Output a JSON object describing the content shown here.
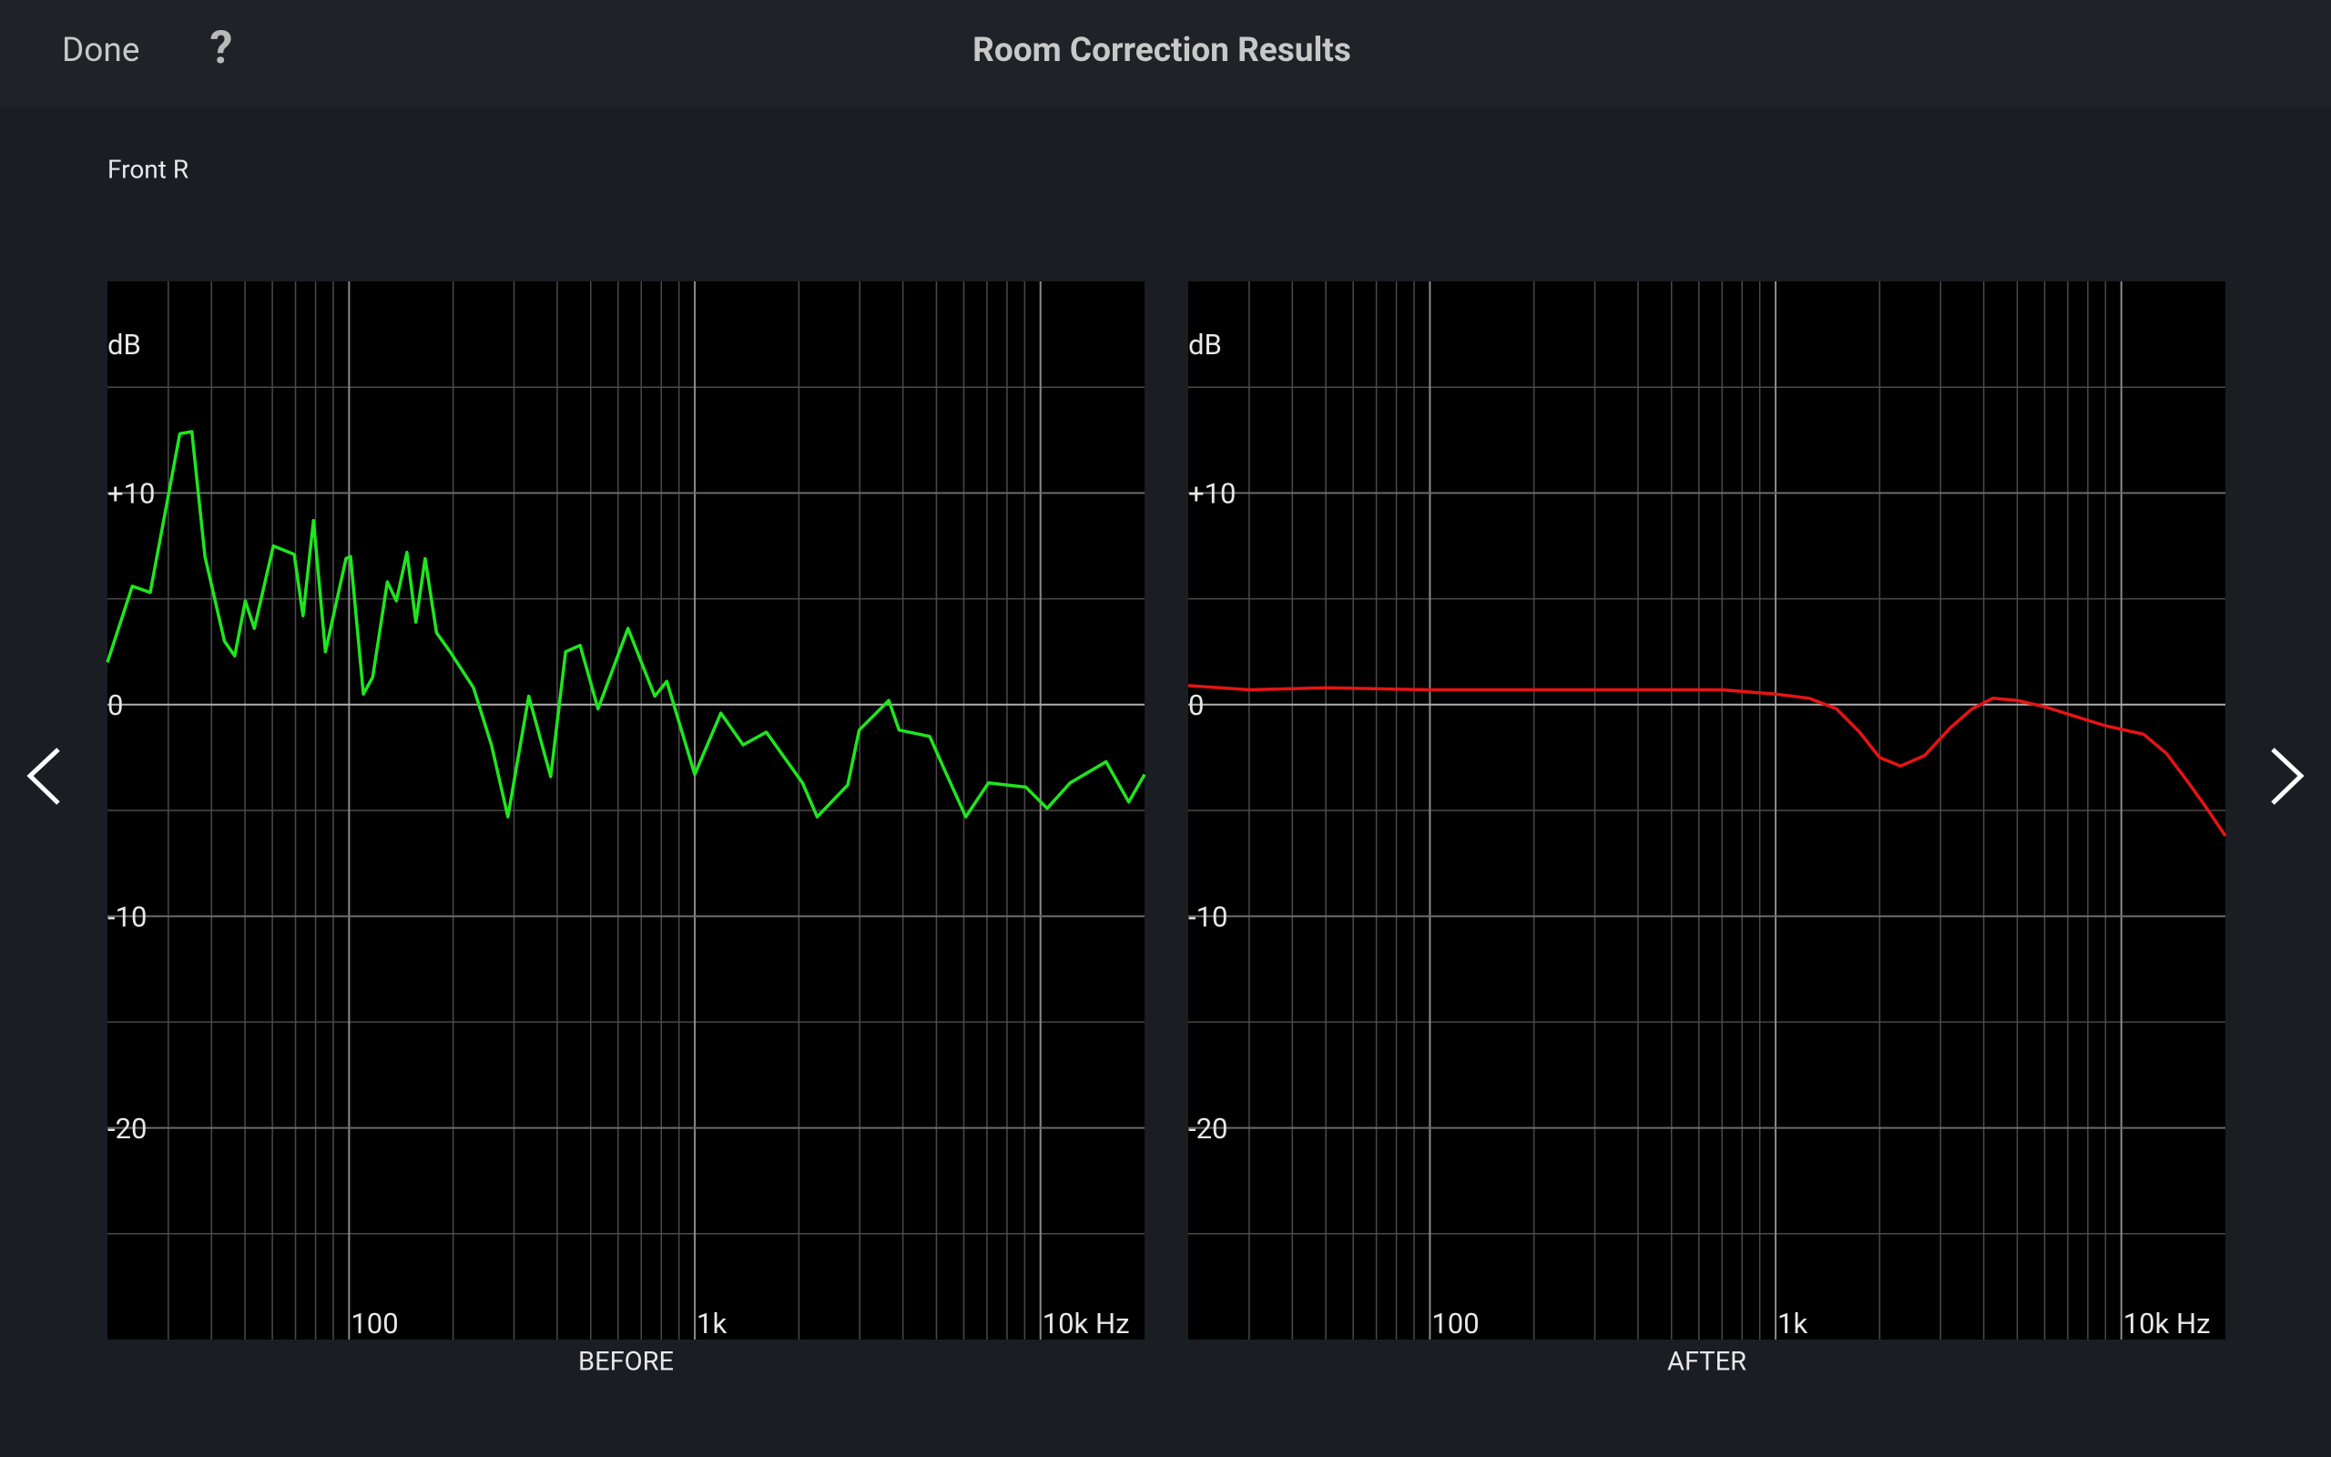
{
  "header": {
    "done": "Done",
    "help": "?",
    "title": "Room Correction Results"
  },
  "section_label": "Front R",
  "chart_data": [
    {
      "type": "line",
      "title": "BEFORE",
      "y_unit": "dB",
      "xscale": "log",
      "grid": true,
      "xlim": [
        20,
        20000
      ],
      "ylim": [
        -30,
        20
      ],
      "xticks": [
        {
          "value": 100,
          "label": "100"
        },
        {
          "value": 1000,
          "label": "1k"
        },
        {
          "value": 10000,
          "label": "10k Hz"
        }
      ],
      "xminorticks": [
        30,
        40,
        50,
        60,
        70,
        80,
        90,
        200,
        300,
        400,
        500,
        600,
        700,
        800,
        900,
        2000,
        3000,
        4000,
        5000,
        6000,
        7000,
        8000,
        9000
      ],
      "yticks": [
        {
          "value": 10,
          "label": "+10"
        },
        0,
        -10,
        -20
      ],
      "yminorticks": [
        15,
        5,
        -5,
        -15,
        -25
      ],
      "x": [
        20,
        23.6,
        26.6,
        32.4,
        35.1,
        38.3,
        43.6,
        46.7,
        50.1,
        53.2,
        60.4,
        69.4,
        73.6,
        78.9,
        85.4,
        98,
        101,
        110,
        117,
        129,
        137,
        147,
        156,
        166,
        179,
        196,
        229,
        258,
        288,
        331,
        383,
        423,
        466,
        525,
        641,
        766,
        830,
        1000,
        1190,
        1380,
        1610,
        2050,
        2260,
        2770,
        2990,
        3640,
        3900,
        4780,
        5320,
        6080,
        7070,
        9070,
        10460,
        12180,
        15470,
        18000,
        20000
      ],
      "series": [
        {
          "color": "#1ee61e",
          "values": [
            2.0,
            5.6,
            5.3,
            12.8,
            12.9,
            7.0,
            3.0,
            2.3,
            4.9,
            3.6,
            7.5,
            7.1,
            4.2,
            8.7,
            2.5,
            6.9,
            7.0,
            0.5,
            1.3,
            5.8,
            4.9,
            7.2,
            3.9,
            6.9,
            3.4,
            2.5,
            0.8,
            -1.9,
            -5.3,
            0.4,
            -3.4,
            2.5,
            2.8,
            -0.2,
            3.6,
            0.4,
            1.1,
            -3.3,
            -0.4,
            -1.9,
            -1.3,
            -3.7,
            -5.3,
            -3.8,
            -1.2,
            0.2,
            -1.2,
            -1.5,
            -3.2,
            -5.3,
            -3.7,
            -3.9,
            -4.9,
            -3.7,
            -2.7,
            -4.6,
            -3.3
          ]
        }
      ]
    },
    {
      "type": "line",
      "title": "AFTER",
      "y_unit": "dB",
      "xscale": "log",
      "grid": true,
      "xlim": [
        20,
        20000
      ],
      "ylim": [
        -30,
        20
      ],
      "xticks": [
        {
          "value": 100,
          "label": "100"
        },
        {
          "value": 1000,
          "label": "1k"
        },
        {
          "value": 10000,
          "label": "10k Hz"
        }
      ],
      "xminorticks": [
        30,
        40,
        50,
        60,
        70,
        80,
        90,
        200,
        300,
        400,
        500,
        600,
        700,
        800,
        900,
        2000,
        3000,
        4000,
        5000,
        6000,
        7000,
        8000,
        9000
      ],
      "yticks": [
        {
          "value": 10,
          "label": "+10"
        },
        0,
        -10,
        -20
      ],
      "yminorticks": [
        15,
        5,
        -5,
        -15,
        -25
      ],
      "x": [
        20,
        30,
        50,
        100,
        200,
        400,
        700,
        1000,
        1250,
        1500,
        1750,
        2000,
        2300,
        2700,
        3200,
        3700,
        4250,
        5000,
        6000,
        7500,
        9000,
        11600,
        13500,
        15500,
        17500,
        20000
      ],
      "series": [
        {
          "color": "#e61414",
          "values": [
            0.9,
            0.7,
            0.8,
            0.7,
            0.7,
            0.7,
            0.7,
            0.5,
            0.3,
            -0.2,
            -1.3,
            -2.5,
            -2.9,
            -2.4,
            -1.1,
            -0.2,
            0.3,
            0.2,
            -0.1,
            -0.6,
            -1.0,
            -1.4,
            -2.3,
            -3.6,
            -4.8,
            -6.2
          ]
        }
      ]
    }
  ]
}
